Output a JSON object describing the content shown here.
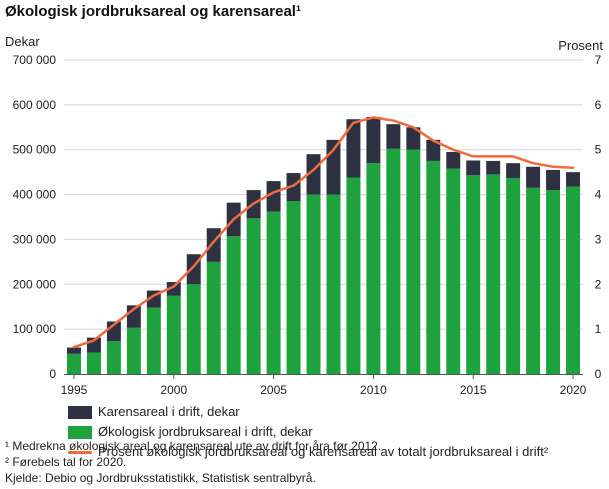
{
  "colors": {
    "karens": "#2d3142",
    "okologisk": "#1ea23e",
    "prosent": "#ef6b3f",
    "grid": "#d6d6d6",
    "axis": "#555555"
  },
  "chart_data": {
    "type": "bar",
    "title": "Økologisk jordbruksareal og karensareal¹",
    "ylabel_left": "Dekar",
    "ylabel_right": "Prosent",
    "categories": [
      "1995",
      "1996",
      "1997",
      "1998",
      "1999",
      "2000",
      "2001",
      "2002",
      "2003",
      "2004",
      "2005",
      "2006",
      "2007",
      "2008",
      "2009",
      "2010",
      "2011",
      "2012",
      "2013",
      "2014",
      "2015",
      "2016",
      "2017",
      "2018",
      "2019",
      "2020"
    ],
    "x_ticks": [
      "1995",
      "2000",
      "2005",
      "2010",
      "2015",
      "2020"
    ],
    "y_left_ticks": [
      "0",
      "100 000",
      "200 000",
      "300 000",
      "400 000",
      "500 000",
      "600 000",
      "700 000"
    ],
    "y_right_ticks": [
      "0",
      "1",
      "2",
      "3",
      "4",
      "5",
      "6",
      "7"
    ],
    "ylim_left": [
      0,
      700000
    ],
    "ylim_right": [
      0,
      7
    ],
    "stacked": true,
    "series": [
      {
        "name": "Økologisk jordbruksareal i drift, dekar",
        "key": "okologisk",
        "axis": "left",
        "values": [
          45000,
          48000,
          73000,
          103000,
          148000,
          175000,
          200000,
          250000,
          307000,
          347000,
          362000,
          385000,
          400000,
          400000,
          438000,
          470000,
          502000,
          500000,
          475000,
          458000,
          443000,
          445000,
          437000,
          415000,
          410000,
          418000
        ]
      },
      {
        "name": "Karensareal i drift, dekar",
        "key": "karens",
        "axis": "left",
        "values": [
          14000,
          33000,
          44000,
          50000,
          38000,
          30000,
          67000,
          75000,
          75000,
          63000,
          68000,
          63000,
          90000,
          122000,
          130000,
          103000,
          55000,
          50000,
          47000,
          37000,
          33000,
          30000,
          33000,
          47000,
          45000,
          32000
        ]
      },
      {
        "name": "Prosent økologisk jordbruksareal og karensareal av totalt jordbruksareal i drift²",
        "key": "prosent",
        "axis": "right",
        "type": "line",
        "values": [
          0.6,
          0.75,
          1.1,
          1.45,
          1.75,
          1.95,
          2.4,
          2.95,
          3.45,
          3.8,
          4.05,
          4.2,
          4.55,
          5.0,
          5.6,
          5.72,
          5.65,
          5.5,
          5.2,
          5.0,
          4.85,
          4.85,
          4.85,
          4.7,
          4.62,
          4.6
        ]
      }
    ],
    "legend": [
      {
        "label": "Karensareal i drift, dekar",
        "key": "karens"
      },
      {
        "label": "Økologisk jordbruksareal i drift, dekar",
        "key": "okologisk"
      },
      {
        "label": "Prosent økologisk jordbruksareal og karensareal av totalt jordbruksareal i drift²",
        "key": "prosent"
      }
    ],
    "legend_position": "bottom-left"
  },
  "notes": [
    "¹ Medrekna økologisk areal og karensareal ute av drift for åra før 2012.",
    "² Førebels tal for 2020.",
    "Kjelde: Debio og Jordbruksstatistikk, Statistisk sentralbyrå."
  ]
}
